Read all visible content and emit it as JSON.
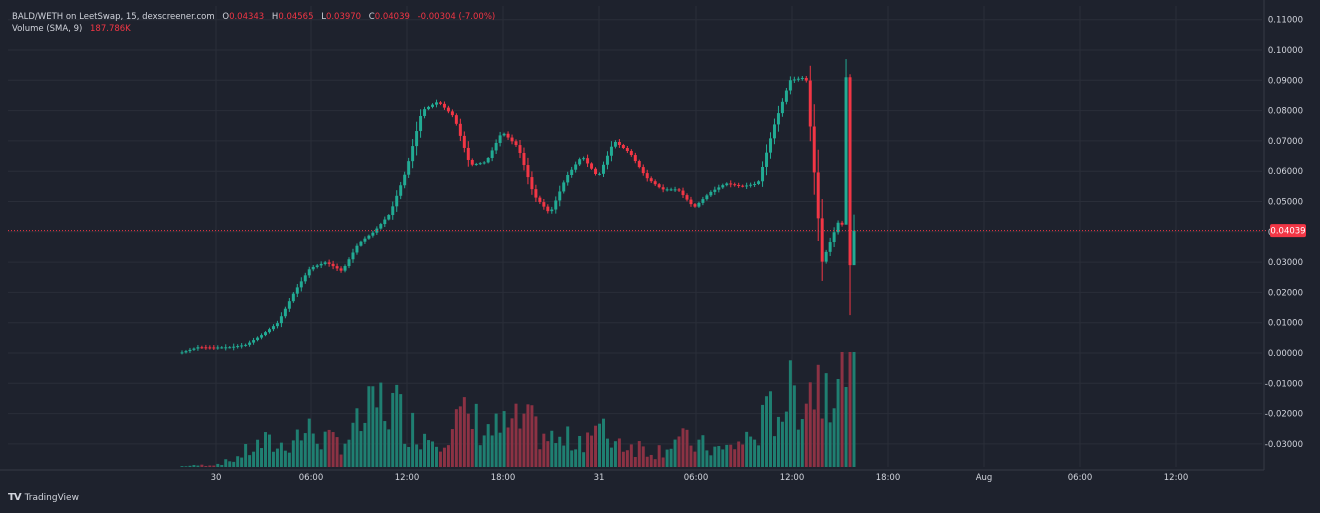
{
  "header": {
    "symbol": "BALD/WETH on LeetSwap, 15, dexscreener.com",
    "o_label": "O",
    "o_value": "0.04343",
    "h_label": "H",
    "h_value": "0.04565",
    "l_label": "L",
    "l_value": "0.03970",
    "c_label": "C",
    "c_value": "0.04039",
    "change": "-0.00304 (-7.00%)",
    "volume_label": "Volume (SMA, 9)",
    "volume_value": "187.786K"
  },
  "brand": {
    "name": "TradingView"
  },
  "price_label": "0.04039",
  "colors": {
    "background": "#1e222d",
    "grid": "#2a2e39",
    "up": "#22ab94",
    "down": "#f23645",
    "up_volume": "#1f7f71",
    "down_volume": "#8c3244",
    "text": "#d1d4dc"
  },
  "chart_data": {
    "type": "candlestick",
    "interval": "15",
    "yaxis_ticks": [
      "0.11000",
      "0.10000",
      "0.09000",
      "0.08000",
      "0.07000",
      "0.06000",
      "0.05000",
      "0.04000",
      "0.03000",
      "0.02000",
      "0.01000",
      "0.00000",
      "-0.01000",
      "-0.02000",
      "-0.03000"
    ],
    "yaxis_values": [
      0.11,
      0.1,
      0.09,
      0.08,
      0.07,
      0.06,
      0.05,
      0.04,
      0.03,
      0.02,
      0.01,
      0.0,
      -0.01,
      -0.02,
      -0.03
    ],
    "xaxis_ticks": [
      "30",
      "06:00",
      "12:00",
      "18:00",
      "31",
      "06:00",
      "12:00",
      "18:00",
      "Aug",
      "06:00",
      "12:00"
    ],
    "last_price": 0.04039,
    "price_anchor": [
      0.0002,
      0.0019,
      0.0018,
      0.0019,
      0.0027,
      0.006,
      0.01,
      0.02,
      0.028,
      0.03,
      0.027,
      0.036,
      0.04,
      0.046,
      0.06,
      0.08,
      0.083,
      0.078,
      0.062,
      0.063,
      0.073,
      0.068,
      0.052,
      0.046,
      0.058,
      0.065,
      0.058,
      0.07,
      0.066,
      0.058,
      0.054,
      0.054,
      0.048,
      0.053,
      0.056,
      0.055,
      0.056,
      0.075,
      0.09,
      0.091,
      0.03,
      0.043,
      0.04039
    ],
    "volume_anchor": [
      1,
      2,
      3,
      8,
      20,
      30,
      25,
      40,
      45,
      30,
      35,
      55,
      80,
      75,
      50,
      40,
      45,
      60,
      55,
      45,
      50,
      55,
      40,
      30,
      35,
      45,
      40,
      30,
      25,
      20,
      35,
      30,
      25,
      20,
      30,
      40,
      70,
      85,
      100,
      110,
      140,
      170
    ]
  }
}
